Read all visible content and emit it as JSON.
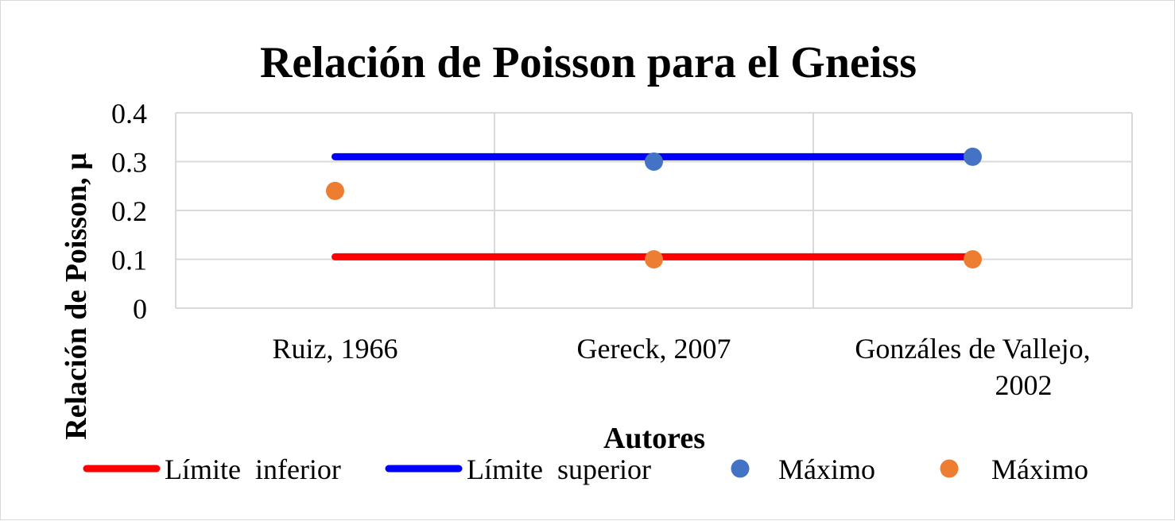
{
  "chart_data": {
    "type": "line",
    "title": "Relación de Poisson para el Gneiss",
    "xlabel": "Autores",
    "ylabel": "Relación de Poisson, μ",
    "categories": [
      [
        "Ruiz, 1966"
      ],
      [
        "Gereck, 2007"
      ],
      [
        "Gonzáles de Vallejo,",
        "2002"
      ]
    ],
    "yticks": [
      "0",
      "0.1",
      "0.2",
      "0.3",
      "0.4"
    ],
    "ylim": [
      0,
      0.4
    ],
    "grid": true,
    "legend_position": "bottom",
    "series": [
      {
        "name": "Límite  inferior",
        "kind": "line",
        "color": "#ff0000",
        "values": [
          0.105,
          0.105,
          0.105
        ]
      },
      {
        "name": "Límite  superior",
        "kind": "line",
        "color": "#0000ff",
        "values": [
          0.31,
          0.31,
          0.31
        ]
      },
      {
        "name": "Máximo",
        "kind": "marker",
        "color": "#4472c4",
        "values": [
          null,
          0.3,
          0.31
        ]
      },
      {
        "name": "Máximo",
        "kind": "marker",
        "color": "#ed7d31",
        "values": [
          0.24,
          0.1,
          0.1
        ]
      }
    ]
  }
}
